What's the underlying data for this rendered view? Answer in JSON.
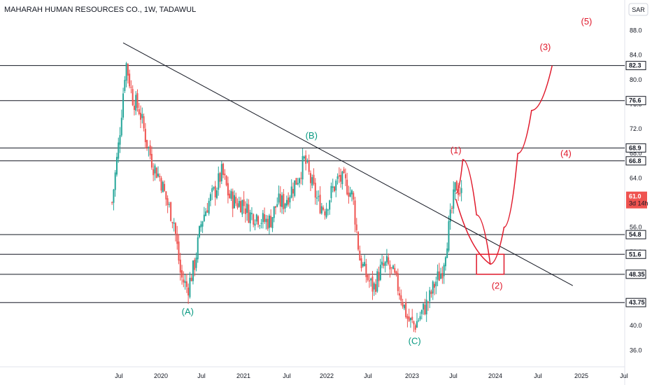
{
  "header": {
    "title": "MAHARAH HUMAN RESOURCES CO., 1W, TADAWUL",
    "currency": "SAR"
  },
  "colors": {
    "up_candle": "#26a69a",
    "down_candle": "#ef5350",
    "wick": "#131722",
    "level_line": "#131722",
    "trendline": "#131722",
    "wave_green": "#089981",
    "wave_red": "#e0192b",
    "projection": "#e0192b",
    "current_price_tag": "#ef5350"
  },
  "chart_data": {
    "type": "candlestick",
    "title": "MAHARAH HUMAN RESOURCES CO., 1W, TADAWUL",
    "y_axis": {
      "unit": "SAR",
      "ylim": [
        33.3,
        90.0
      ],
      "ticks": [
        "88.0",
        "84.0",
        "80.0",
        "76.0",
        "72.0",
        "68.0",
        "64.0",
        "60.0",
        "56.0",
        "52.0",
        "48.0",
        "44.0",
        "40.0",
        "36.0"
      ]
    },
    "x_axis": {
      "tick_labels": [
        "Jul",
        "2020",
        "Jul",
        "2021",
        "Jul",
        "2022",
        "Jul",
        "2023",
        "Jul",
        "2024",
        "Jul",
        "2025",
        "Jul"
      ]
    },
    "horizontal_levels": [
      "82.3",
      "76.6",
      "68.9",
      "66.8",
      "54.8",
      "51.6",
      "48.35",
      "43.75"
    ],
    "current_price": {
      "value": "61.0",
      "countdown": "3d 14h"
    },
    "trendline": {
      "from": [
        "2019-07",
        86.0
      ],
      "to": [
        "2025-01",
        46.5
      ]
    },
    "price_path": [
      [
        "2019-06",
        60
      ],
      [
        "2019-07",
        70
      ],
      [
        "2019-08",
        83
      ],
      [
        "2019-09",
        77
      ],
      [
        "2019-10",
        75
      ],
      [
        "2019-11",
        70
      ],
      [
        "2019-12",
        66
      ],
      [
        "2020-01",
        64
      ],
      [
        "2020-02",
        60
      ],
      [
        "2020-03",
        57
      ],
      [
        "2020-04",
        48
      ],
      [
        "2020-05",
        46
      ],
      [
        "2020-06",
        50
      ],
      [
        "2020-07",
        57
      ],
      [
        "2020-08",
        60
      ],
      [
        "2020-09",
        62
      ],
      [
        "2020-10",
        65
      ],
      [
        "2020-11",
        61
      ],
      [
        "2020-12",
        60
      ],
      [
        "2021-01",
        60
      ],
      [
        "2021-02",
        58
      ],
      [
        "2021-03",
        58
      ],
      [
        "2021-04",
        57
      ],
      [
        "2021-05",
        57
      ],
      [
        "2021-06",
        60
      ],
      [
        "2021-07",
        60
      ],
      [
        "2021-08",
        62
      ],
      [
        "2021-09",
        64
      ],
      [
        "2021-10",
        67
      ],
      [
        "2021-11",
        63
      ],
      [
        "2021-12",
        60
      ],
      [
        "2022-01",
        59
      ],
      [
        "2022-02",
        62
      ],
      [
        "2022-03",
        64
      ],
      [
        "2022-04",
        63
      ],
      [
        "2022-05",
        61
      ],
      [
        "2022-06",
        51
      ],
      [
        "2022-07",
        48
      ],
      [
        "2022-08",
        46
      ],
      [
        "2022-09",
        49
      ],
      [
        "2022-10",
        50
      ],
      [
        "2022-11",
        48
      ],
      [
        "2022-12",
        45
      ],
      [
        "2023-01",
        41
      ],
      [
        "2023-02",
        40
      ],
      [
        "2023-03",
        42
      ],
      [
        "2023-04",
        44
      ],
      [
        "2023-05",
        47
      ],
      [
        "2023-06",
        49
      ],
      [
        "2023-07",
        56
      ],
      [
        "2023-08",
        63
      ],
      [
        "2023-09",
        61
      ]
    ],
    "wave_labels": [
      {
        "label": "(A)",
        "x": "2020-05",
        "y": 41.8,
        "color": "green"
      },
      {
        "label": "(B)",
        "x": "2021-11",
        "y": 70.4,
        "color": "green"
      },
      {
        "label": "(C)",
        "x": "2023-02",
        "y": 37.0,
        "color": "green"
      },
      {
        "label": "(1)",
        "x": "2023-08",
        "y": 68.0,
        "color": "red"
      },
      {
        "label": "(2)",
        "x": "2024-02",
        "y": 46.0,
        "color": "red"
      },
      {
        "label": "(3)",
        "x": "2024-09",
        "y": 84.8,
        "color": "red"
      },
      {
        "label": "(4)",
        "x": "2024-12",
        "y": 67.5,
        "color": "red"
      },
      {
        "label": "(5)",
        "x": "2025-03",
        "y": 89.0,
        "color": "red"
      }
    ],
    "projection_path": [
      [
        "2023-08",
        61.5
      ],
      [
        "2023-09",
        67.0
      ],
      [
        "2023-11",
        58.0
      ],
      [
        "2024-01",
        50.0
      ],
      [
        "2024-03",
        56.0
      ],
      [
        "2024-05",
        68.0
      ],
      [
        "2024-07",
        75.0
      ],
      [
        "2024-10",
        82.3
      ]
    ],
    "target_box": {
      "x_start": "2023-11",
      "x_end": "2024-03",
      "y_low": 48.35,
      "y_high": 51.6
    }
  }
}
